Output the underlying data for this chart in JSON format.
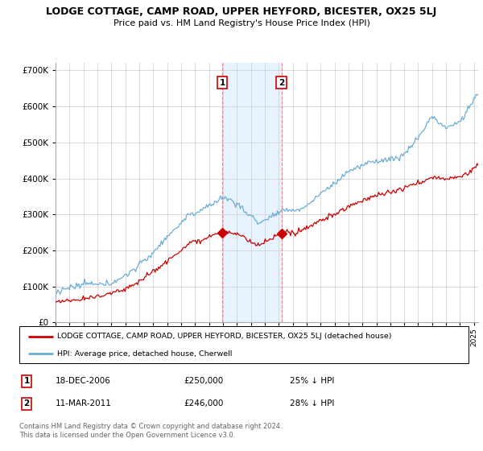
{
  "title": "LODGE COTTAGE, CAMP ROAD, UPPER HEYFORD, BICESTER, OX25 5LJ",
  "subtitle": "Price paid vs. HM Land Registry's House Price Index (HPI)",
  "ylim": [
    0,
    720000
  ],
  "xlim_start": 1995.0,
  "xlim_end": 2025.3,
  "hpi_color": "#6baed6",
  "price_color": "#cc0000",
  "sale1_x": 2006.96,
  "sale1_y": 250000,
  "sale1_label": "1",
  "sale2_x": 2011.19,
  "sale2_y": 246000,
  "sale2_label": "2",
  "shade_color": "#ddeeff",
  "dashed_color": "#e08080",
  "legend_line1": "LODGE COTTAGE, CAMP ROAD, UPPER HEYFORD, BICESTER, OX25 5LJ (detached house)",
  "legend_line2": "HPI: Average price, detached house, Cherwell",
  "note1_label": "1",
  "note1_date": "18-DEC-2006",
  "note1_price": "£250,000",
  "note1_pct": "25% ↓ HPI",
  "note2_label": "2",
  "note2_date": "11-MAR-2011",
  "note2_price": "£246,000",
  "note2_pct": "28% ↓ HPI",
  "footer": "Contains HM Land Registry data © Crown copyright and database right 2024.\nThis data is licensed under the Open Government Licence v3.0."
}
